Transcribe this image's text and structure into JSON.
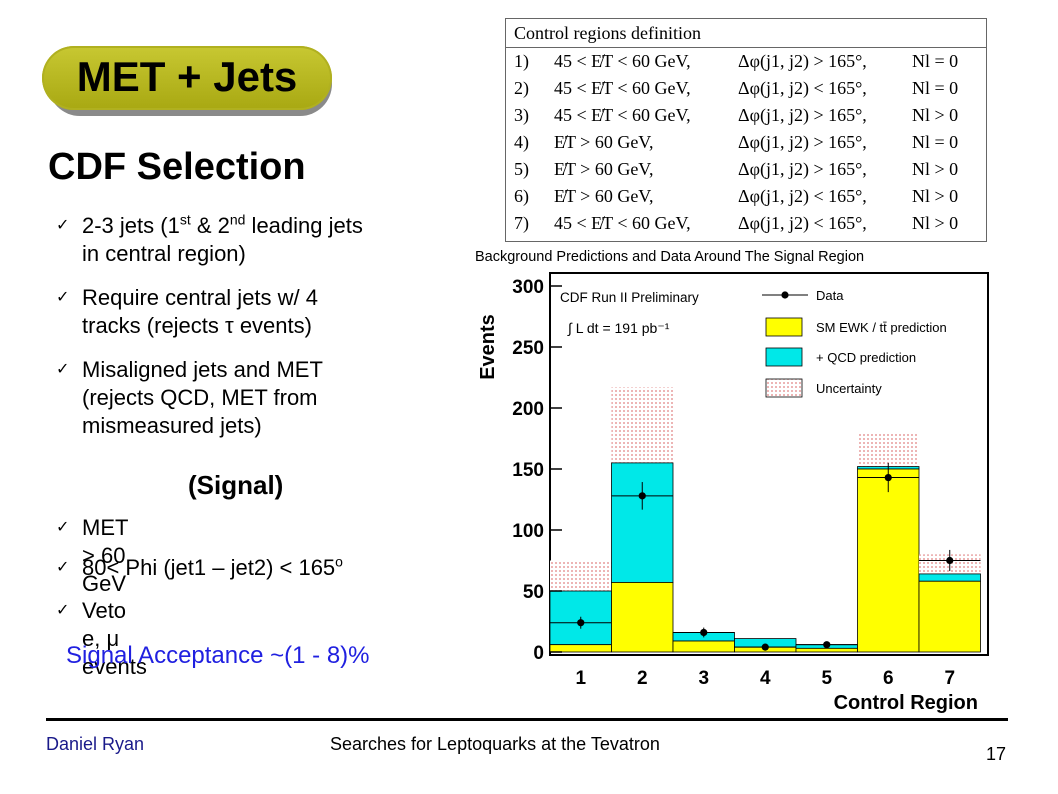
{
  "title": "MET + Jets",
  "heading": "CDF Selection",
  "bullets_top": [
    {
      "line1_a": "2-3 jets (1",
      "sup1": "st",
      "line1_b": " & 2",
      "sup2": "nd",
      "line1_c": " leading jets",
      "line2": "in central region)"
    },
    {
      "line1": "Require central jets w/ 4",
      "line2": "tracks (rejects τ events)"
    },
    {
      "line1": "Misaligned jets and MET",
      "line2": "(rejects QCD, MET from",
      "line3": "mismeasured jets)"
    }
  ],
  "signal_label": "(Signal)",
  "bullets_signal": [
    {
      "text": "MET > 60 GeV"
    },
    {
      "text_a": "80< Phi (jet1 – jet2) < 165",
      "sup": "o"
    },
    {
      "text": "Veto e, μ events"
    }
  ],
  "acceptance": "Signal Acceptance ~(1 - 8)%",
  "table": {
    "header": "Control regions definition",
    "rows": [
      {
        "n": "1)",
        "met": "45 < E̸T < 60 GeV,",
        "phi": "Δφ(j1, j2) > 165°,",
        "nl": "Nl = 0"
      },
      {
        "n": "2)",
        "met": "45 < E̸T < 60 GeV,",
        "phi": "Δφ(j1, j2) < 165°,",
        "nl": "Nl = 0"
      },
      {
        "n": "3)",
        "met": "45 < E̸T < 60 GeV,",
        "phi": "Δφ(j1, j2) > 165°,",
        "nl": "Nl > 0"
      },
      {
        "n": "4)",
        "met": "E̸T > 60 GeV,",
        "phi": "Δφ(j1, j2) > 165°,",
        "nl": "Nl = 0"
      },
      {
        "n": "5)",
        "met": "E̸T > 60 GeV,",
        "phi": "Δφ(j1, j2) > 165°,",
        "nl": "Nl > 0"
      },
      {
        "n": "6)",
        "met": "E̸T > 60 GeV,",
        "phi": "Δφ(j1, j2) < 165°,",
        "nl": "Nl > 0"
      },
      {
        "n": "7)",
        "met": "45 < E̸T < 60 GeV,",
        "phi": "Δφ(j1, j2) < 165°,",
        "nl": "Nl > 0"
      }
    ]
  },
  "chart_data": {
    "type": "bar",
    "title": "Background Predictions and Data Around The Signal Region",
    "xlabel": "Control Region",
    "ylabel": "Events",
    "annotation_1": "CDF Run II Preliminary",
    "annotation_2": "∫ L dt = 191 pb⁻¹",
    "categories": [
      "1",
      "2",
      "3",
      "4",
      "5",
      "6",
      "7"
    ],
    "ylim": [
      0,
      310
    ],
    "yticks": [
      "0",
      "50",
      "100",
      "150",
      "200",
      "250",
      "300"
    ],
    "series": [
      {
        "name": "SM EWK / tt̄ prediction",
        "values": [
          6,
          57,
          9,
          4,
          3,
          150,
          58
        ]
      },
      {
        "name": "+ QCD prediction",
        "values": [
          44,
          98,
          7,
          7,
          3,
          2,
          6
        ]
      },
      {
        "name": "Uncertainty",
        "values": [
          75,
          217,
          16,
          11,
          6,
          180,
          80
        ]
      },
      {
        "name": "Data",
        "values": [
          24,
          128,
          16,
          4,
          6,
          143,
          75
        ]
      }
    ],
    "legend": [
      "Data",
      "SM EWK / tt̄ prediction",
      "+ QCD prediction",
      "Uncertainty"
    ],
    "colors": {
      "ewk": "#ffff00",
      "qcd": "#00e8e8",
      "uncertainty": "#f4c0c0",
      "data": "#000000"
    }
  },
  "footer": {
    "author": "Daniel Ryan",
    "talk": "Searches for Leptoquarks at the Tevatron",
    "page": "17"
  }
}
